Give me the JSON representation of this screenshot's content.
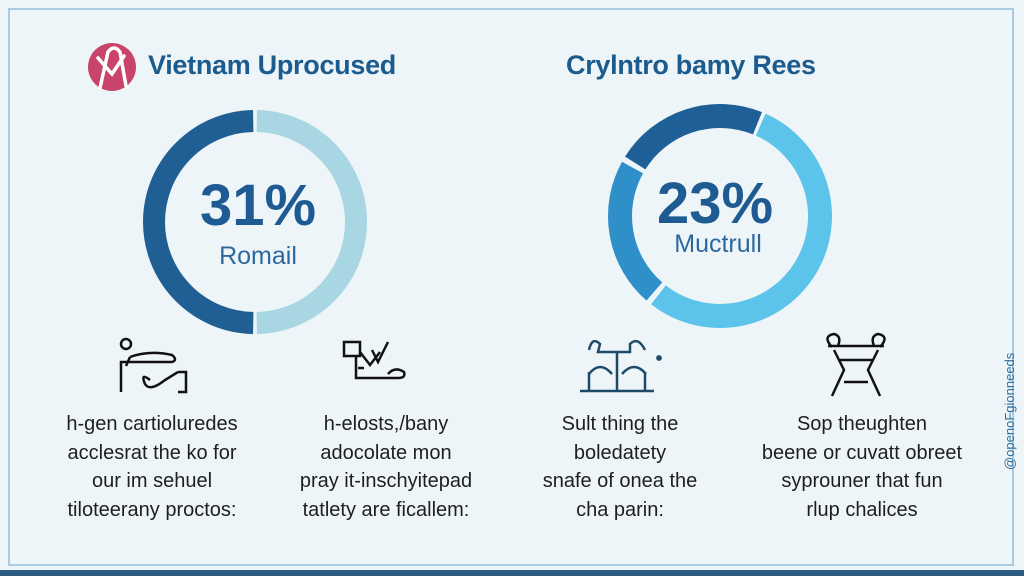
{
  "left_panel": {
    "title": "Vietnam Uprocused",
    "logo_icon": "pink-circle-logo-icon",
    "percent": "31%",
    "label": "Romail",
    "donut_colors": [
      "#1f5f94",
      "#a9d6e3"
    ]
  },
  "right_panel": {
    "title": "Crylntro bamy Rees",
    "percent": "23%",
    "label": "Muctrull",
    "donut_colors": [
      "#1d5f96",
      "#5cc4ea",
      "#2e8fc9"
    ]
  },
  "columns": [
    {
      "icon": "person-desk-icon",
      "lines": [
        "h-gen cartioluredes",
        "acclesrat the ko for",
        "our im sehuel",
        "tiloteerany proctos:"
      ]
    },
    {
      "icon": "checklist-tools-icon",
      "lines": [
        "h-elosts,/bany",
        "adocolate mon",
        "pray it-inschyitepad",
        "tatlety are ficallem:"
      ]
    },
    {
      "icon": "building-network-icon",
      "lines": [
        "Sult thing the",
        "boledatety",
        "snafe of onea the",
        "cha parin:"
      ]
    },
    {
      "icon": "table-frame-icon",
      "lines": [
        "Sop theughten",
        "beene or cuvatt obreet",
        "syprouner that fun",
        "rlup chalices"
      ]
    }
  ],
  "side_text": "@openoFgionneeds"
}
